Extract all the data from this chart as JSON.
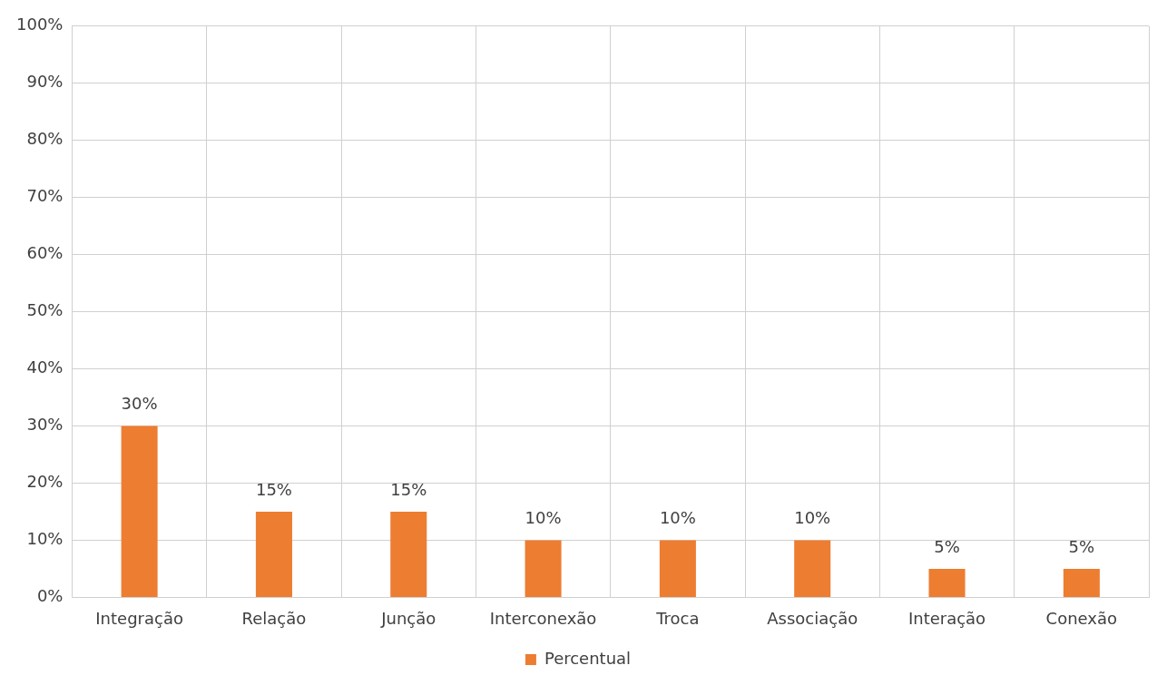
{
  "chart_data": {
    "type": "bar",
    "categories": [
      "Integração",
      "Relação",
      "Junção",
      "Interconexão",
      "Troca",
      "Associação",
      "Interação",
      "Conexão"
    ],
    "series": [
      {
        "name": "Percentual",
        "color": "#ed7d31",
        "values": [
          30,
          15,
          15,
          10,
          10,
          10,
          5,
          5
        ],
        "value_labels": [
          "30%",
          "15%",
          "15%",
          "10%",
          "10%",
          "10%",
          "5%",
          "5%"
        ]
      }
    ],
    "ylim": [
      0,
      100
    ],
    "yticks": [
      {
        "value": 0,
        "label": "0%"
      },
      {
        "value": 10,
        "label": "10%"
      },
      {
        "value": 20,
        "label": "20%"
      },
      {
        "value": 30,
        "label": "30%"
      },
      {
        "value": 40,
        "label": "40%"
      },
      {
        "value": 50,
        "label": "50%"
      },
      {
        "value": 60,
        "label": "60%"
      },
      {
        "value": 70,
        "label": "70%"
      },
      {
        "value": 80,
        "label": "80%"
      },
      {
        "value": 90,
        "label": "90%"
      },
      {
        "value": 100,
        "label": "100%"
      }
    ],
    "grid": true,
    "legend": "bottom"
  }
}
